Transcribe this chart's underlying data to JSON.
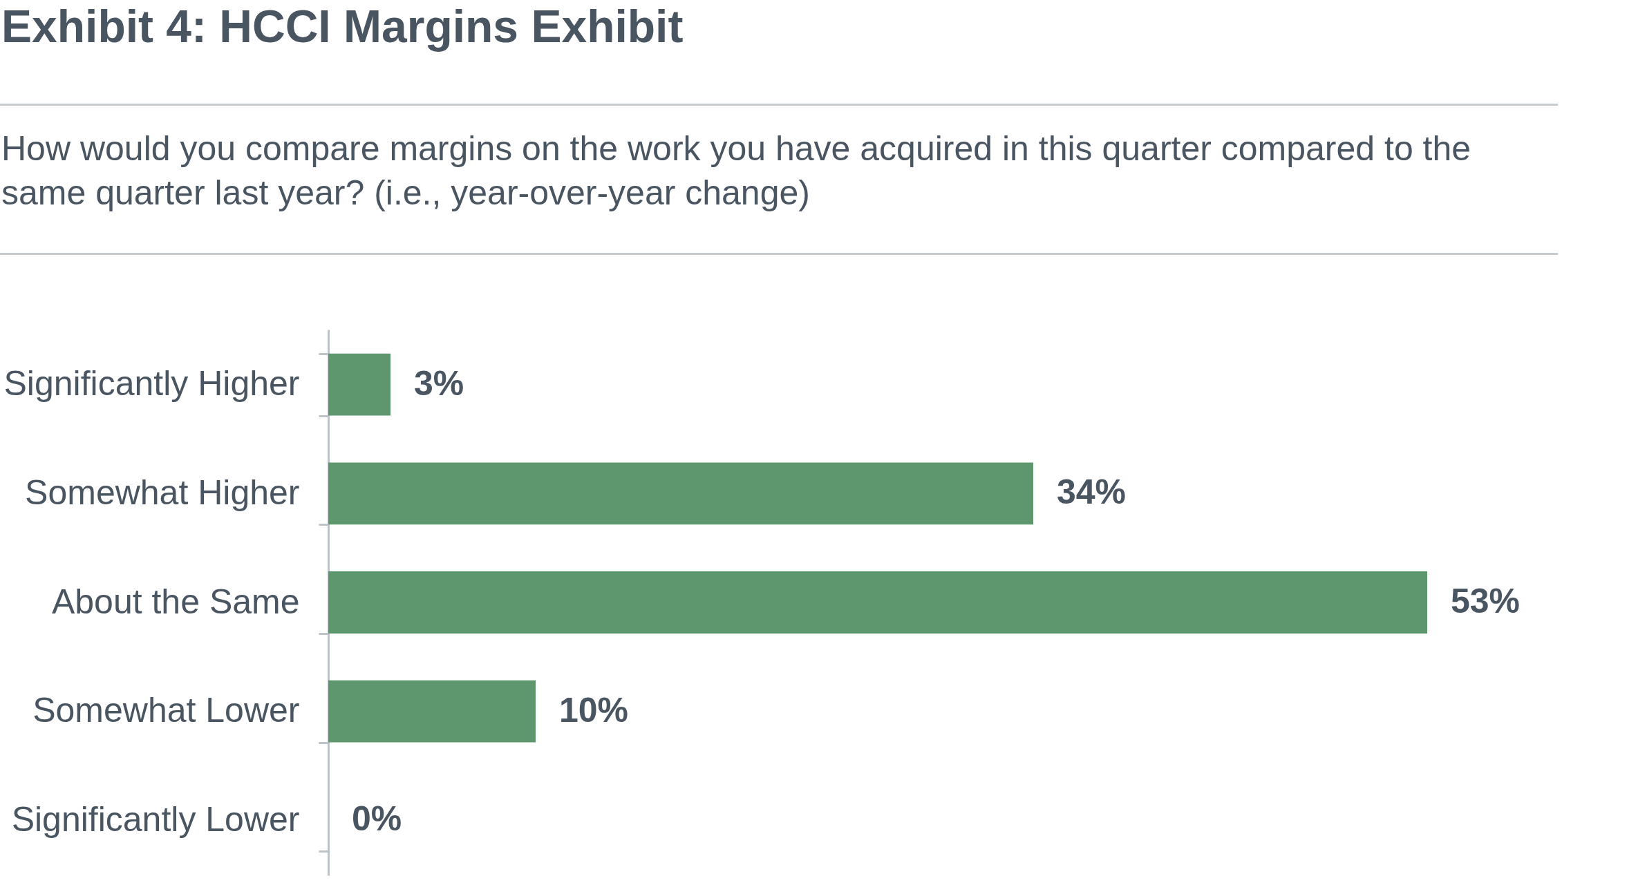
{
  "chart_data": {
    "type": "bar",
    "orientation": "horizontal",
    "title": "Exhibit 4: HCCI Margins Exhibit",
    "subtitle": "How would you compare margins on the work you have acquired in this quarter compared to the same quarter last year? (i.e., year-over-year change)",
    "categories": [
      "Significantly Higher",
      "Somewhat Higher",
      "About the Same",
      "Somewhat Lower",
      "Significantly Lower"
    ],
    "values": [
      3,
      34,
      53,
      10,
      0
    ],
    "value_labels": [
      "3%",
      "34%",
      "53%",
      "10%",
      "0%"
    ],
    "color": "#5e976d",
    "tick_labels": "y"
  }
}
